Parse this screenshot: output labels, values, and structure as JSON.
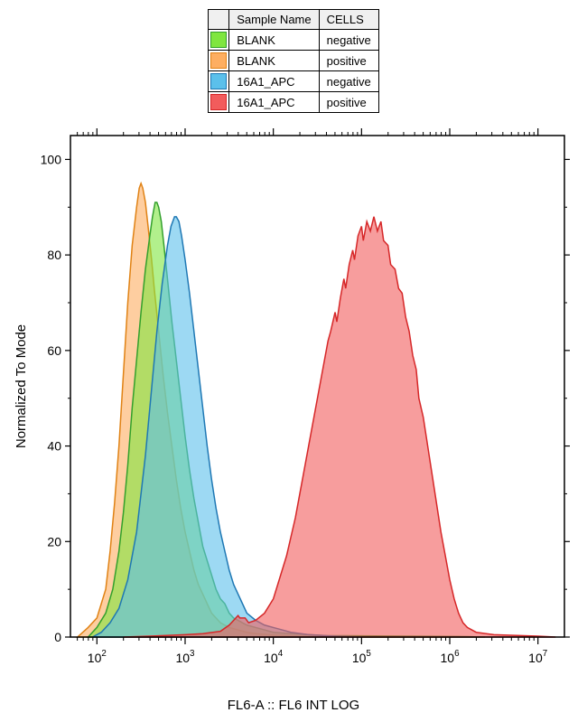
{
  "legend": {
    "headers": [
      "",
      "Sample Name",
      "CELLS"
    ],
    "rows": [
      {
        "color": "#7fe63f",
        "stroke": "#33a02c",
        "sample": "BLANK",
        "cells": "negative"
      },
      {
        "color": "#fdae61",
        "stroke": "#e08214",
        "sample": "BLANK",
        "cells": "positive"
      },
      {
        "color": "#5bc0eb",
        "stroke": "#1f78b4",
        "sample": "16A1_APC",
        "cells": "negative"
      },
      {
        "color": "#f25c5c",
        "stroke": "#d62728",
        "sample": "16A1_APC",
        "cells": "positive"
      }
    ]
  },
  "chart": {
    "ylabel": "Normalized To Mode",
    "xlabel": "FL6-A :: FL6 INT LOG",
    "ylim": [
      0,
      105
    ],
    "yticks": [
      0,
      20,
      40,
      60,
      80,
      100
    ],
    "xscale": "log",
    "xlim_exp": [
      1.7,
      7.3
    ],
    "xticks_exp": [
      2,
      3,
      4,
      5,
      6,
      7
    ],
    "background": "#ffffff",
    "axis_color": "#000000",
    "fill_opacity": 0.6,
    "stroke_width": 1.5,
    "label_fontsize": 15,
    "tick_fontsize": 14,
    "series": [
      {
        "name": "BLANK-pos",
        "color": "#fdae61",
        "stroke": "#e08214",
        "points": [
          [
            1.78,
            0
          ],
          [
            1.9,
            2
          ],
          [
            2.0,
            4
          ],
          [
            2.1,
            10
          ],
          [
            2.15,
            18
          ],
          [
            2.2,
            28
          ],
          [
            2.25,
            40
          ],
          [
            2.3,
            55
          ],
          [
            2.35,
            70
          ],
          [
            2.4,
            82
          ],
          [
            2.45,
            90
          ],
          [
            2.48,
            94
          ],
          [
            2.5,
            95
          ],
          [
            2.52,
            94
          ],
          [
            2.55,
            91
          ],
          [
            2.58,
            86
          ],
          [
            2.62,
            79
          ],
          [
            2.65,
            73
          ],
          [
            2.7,
            64
          ],
          [
            2.75,
            55
          ],
          [
            2.8,
            47
          ],
          [
            2.85,
            40
          ],
          [
            2.9,
            33
          ],
          [
            2.95,
            27
          ],
          [
            3.0,
            22
          ],
          [
            3.05,
            18
          ],
          [
            3.1,
            14
          ],
          [
            3.15,
            11
          ],
          [
            3.2,
            9
          ],
          [
            3.25,
            7
          ],
          [
            3.3,
            5
          ],
          [
            3.35,
            4
          ],
          [
            3.4,
            3
          ],
          [
            3.5,
            2
          ],
          [
            3.6,
            1.5
          ],
          [
            3.7,
            1
          ],
          [
            3.8,
            0.7
          ],
          [
            4.0,
            0.4
          ],
          [
            4.3,
            0.2
          ],
          [
            5.0,
            0
          ],
          [
            6.0,
            0
          ]
        ]
      },
      {
        "name": "BLANK-neg",
        "color": "#7fe63f",
        "stroke": "#33a02c",
        "points": [
          [
            1.9,
            0
          ],
          [
            2.0,
            2
          ],
          [
            2.1,
            5
          ],
          [
            2.18,
            10
          ],
          [
            2.25,
            18
          ],
          [
            2.3,
            26
          ],
          [
            2.35,
            36
          ],
          [
            2.4,
            48
          ],
          [
            2.45,
            58
          ],
          [
            2.5,
            68
          ],
          [
            2.55,
            77
          ],
          [
            2.6,
            84
          ],
          [
            2.63,
            88
          ],
          [
            2.66,
            91
          ],
          [
            2.68,
            91
          ],
          [
            2.7,
            90
          ],
          [
            2.73,
            87
          ],
          [
            2.76,
            82
          ],
          [
            2.8,
            75
          ],
          [
            2.85,
            66
          ],
          [
            2.9,
            58
          ],
          [
            2.95,
            50
          ],
          [
            3.0,
            42
          ],
          [
            3.05,
            35
          ],
          [
            3.1,
            29
          ],
          [
            3.15,
            24
          ],
          [
            3.2,
            19
          ],
          [
            3.25,
            16
          ],
          [
            3.3,
            13
          ],
          [
            3.35,
            10
          ],
          [
            3.4,
            8
          ],
          [
            3.45,
            7
          ],
          [
            3.5,
            5
          ],
          [
            3.55,
            4
          ],
          [
            3.6,
            3.5
          ],
          [
            3.7,
            2.5
          ],
          [
            3.8,
            2
          ],
          [
            3.9,
            1.5
          ],
          [
            4.0,
            1
          ],
          [
            4.2,
            0.7
          ],
          [
            4.6,
            0.3
          ],
          [
            5.5,
            0.2
          ],
          [
            6.2,
            0.1
          ],
          [
            6.4,
            0
          ]
        ]
      },
      {
        "name": "16A1_APC-neg",
        "color": "#5bc0eb",
        "stroke": "#1f78b4",
        "points": [
          [
            1.95,
            0
          ],
          [
            2.05,
            1
          ],
          [
            2.15,
            3
          ],
          [
            2.25,
            6
          ],
          [
            2.35,
            12
          ],
          [
            2.45,
            22
          ],
          [
            2.55,
            38
          ],
          [
            2.62,
            52
          ],
          [
            2.68,
            64
          ],
          [
            2.74,
            74
          ],
          [
            2.8,
            82
          ],
          [
            2.84,
            86
          ],
          [
            2.88,
            88
          ],
          [
            2.9,
            88
          ],
          [
            2.93,
            87
          ],
          [
            2.96,
            84
          ],
          [
            3.0,
            79
          ],
          [
            3.05,
            72
          ],
          [
            3.1,
            64
          ],
          [
            3.15,
            56
          ],
          [
            3.2,
            48
          ],
          [
            3.25,
            40
          ],
          [
            3.3,
            33
          ],
          [
            3.35,
            27
          ],
          [
            3.4,
            22
          ],
          [
            3.45,
            18
          ],
          [
            3.5,
            14
          ],
          [
            3.55,
            11
          ],
          [
            3.6,
            9
          ],
          [
            3.65,
            7
          ],
          [
            3.7,
            5
          ],
          [
            3.8,
            3.5
          ],
          [
            3.9,
            2.5
          ],
          [
            4.0,
            2
          ],
          [
            4.1,
            1.5
          ],
          [
            4.2,
            1
          ],
          [
            4.4,
            0.5
          ],
          [
            4.7,
            0.2
          ],
          [
            5.0,
            0
          ]
        ]
      },
      {
        "name": "16A1_APC-pos",
        "color": "#f25c5c",
        "stroke": "#d62728",
        "points": [
          [
            2.3,
            0
          ],
          [
            2.6,
            0.2
          ],
          [
            3.0,
            0.5
          ],
          [
            3.2,
            0.7
          ],
          [
            3.4,
            1.2
          ],
          [
            3.5,
            2.5
          ],
          [
            3.55,
            3.5
          ],
          [
            3.6,
            4.5
          ],
          [
            3.62,
            4
          ],
          [
            3.68,
            4
          ],
          [
            3.72,
            3
          ],
          [
            3.8,
            3.5
          ],
          [
            3.9,
            5
          ],
          [
            4.0,
            8
          ],
          [
            4.05,
            11
          ],
          [
            4.1,
            14
          ],
          [
            4.15,
            17
          ],
          [
            4.2,
            21
          ],
          [
            4.25,
            25
          ],
          [
            4.3,
            30
          ],
          [
            4.35,
            35
          ],
          [
            4.4,
            40
          ],
          [
            4.45,
            45
          ],
          [
            4.5,
            50
          ],
          [
            4.55,
            55
          ],
          [
            4.58,
            58
          ],
          [
            4.62,
            62
          ],
          [
            4.65,
            64
          ],
          [
            4.7,
            68
          ],
          [
            4.72,
            66
          ],
          [
            4.76,
            71
          ],
          [
            4.8,
            75
          ],
          [
            4.82,
            73
          ],
          [
            4.86,
            78
          ],
          [
            4.9,
            81
          ],
          [
            4.92,
            79
          ],
          [
            4.96,
            84
          ],
          [
            5.0,
            86
          ],
          [
            5.02,
            83
          ],
          [
            5.06,
            87
          ],
          [
            5.1,
            85
          ],
          [
            5.14,
            88
          ],
          [
            5.18,
            85
          ],
          [
            5.22,
            87
          ],
          [
            5.25,
            83
          ],
          [
            5.3,
            82
          ],
          [
            5.33,
            78
          ],
          [
            5.38,
            77
          ],
          [
            5.42,
            73
          ],
          [
            5.46,
            72
          ],
          [
            5.5,
            67
          ],
          [
            5.54,
            64
          ],
          [
            5.58,
            59
          ],
          [
            5.62,
            56
          ],
          [
            5.65,
            50
          ],
          [
            5.7,
            46
          ],
          [
            5.75,
            40
          ],
          [
            5.8,
            34
          ],
          [
            5.85,
            28
          ],
          [
            5.9,
            22
          ],
          [
            5.95,
            17
          ],
          [
            6.0,
            12
          ],
          [
            6.05,
            8
          ],
          [
            6.1,
            5
          ],
          [
            6.15,
            3
          ],
          [
            6.2,
            2
          ],
          [
            6.3,
            1
          ],
          [
            6.5,
            0.5
          ],
          [
            7.0,
            0.2
          ],
          [
            7.2,
            0
          ]
        ]
      }
    ]
  }
}
